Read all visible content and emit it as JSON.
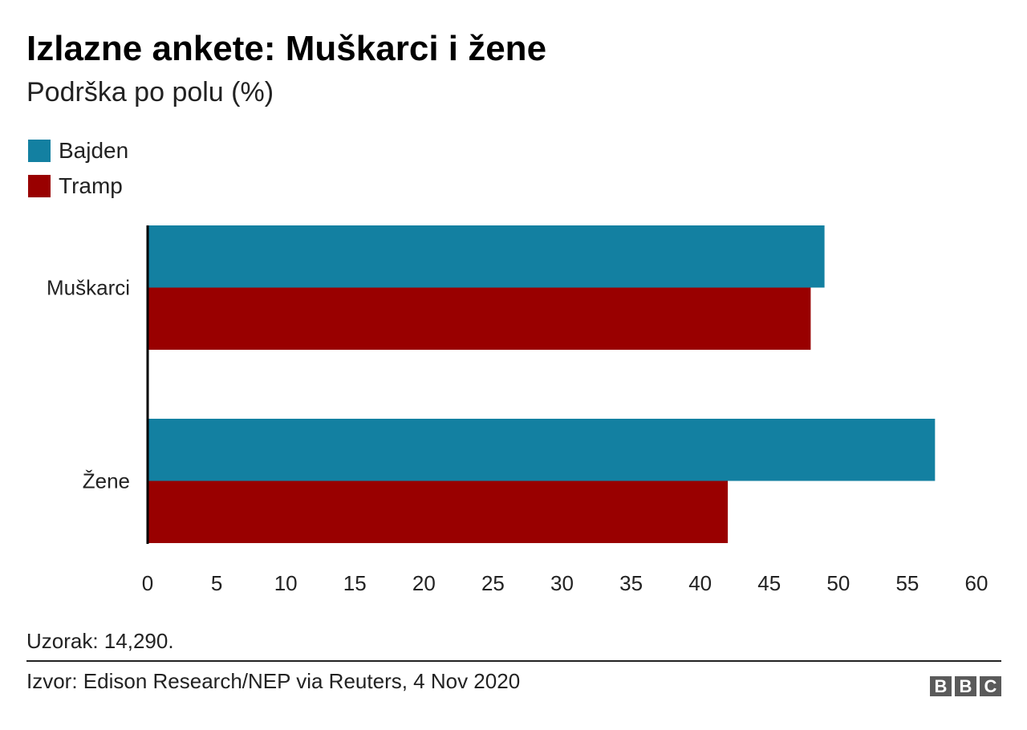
{
  "chart_data": {
    "type": "bar",
    "orientation": "horizontal",
    "title": "Izlazne ankete: Muškarci i žene",
    "subtitle": "Podrška po polu (%)",
    "categories": [
      "Muškarci",
      "Žene"
    ],
    "series": [
      {
        "name": "Bajden",
        "color": "#1380A1",
        "values": [
          49,
          57
        ]
      },
      {
        "name": "Tramp",
        "color": "#990000",
        "values": [
          48,
          42
        ]
      }
    ],
    "xlim": [
      0,
      60
    ],
    "xticks": [
      "0",
      "5",
      "10",
      "15",
      "20",
      "25",
      "30",
      "35",
      "40",
      "45",
      "50",
      "55",
      "60"
    ],
    "grid": false,
    "legend_placement": "top-left"
  },
  "footer": {
    "sample": "Uzorak: 14,290.",
    "source": "Izvor: Edison Research/NEP via Reuters, 4 Nov 2020",
    "logo": "BBC"
  }
}
